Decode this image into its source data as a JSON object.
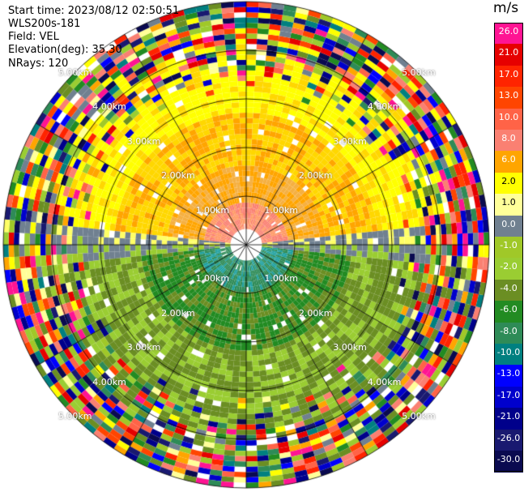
{
  "header": {
    "start_time": "Start time: 2023/08/12 02:50:51",
    "instrument": "WLS200s-181",
    "field": "Field: VEL",
    "elevation": "Elevation(deg): 35.30",
    "nrays": "NRays: 120"
  },
  "range_rings": {
    "labels": [
      "1.00km",
      "2.00km",
      "3.00km",
      "4.00km",
      "5.00km"
    ],
    "max_range_km": 5.0
  },
  "colorbar": {
    "unit": "m/s",
    "ticks": [
      "26.0",
      "21.0",
      "17.0",
      "13.0",
      "10.0",
      "8.0",
      "6.0",
      "2.0",
      "1.0",
      "0.0",
      "-1.0",
      "-2.0",
      "-4.0",
      "-6.0",
      "-8.0",
      "-10.0",
      "-13.0",
      "-17.0",
      "-21.0",
      "-26.0",
      "-30.0"
    ],
    "colors": [
      "#ff1493",
      "#e60000",
      "#ff2400",
      "#ff4500",
      "#ff6347",
      "#fa8072",
      "#ffa500",
      "#ffff00",
      "#ffff99",
      "#708090",
      "#a0c828",
      "#9acd32",
      "#6b8e23",
      "#228b22",
      "#2e8b57",
      "#008080",
      "#0000ff",
      "#0000cd",
      "#00008b",
      "#191970",
      "#0a0a50"
    ]
  }
}
